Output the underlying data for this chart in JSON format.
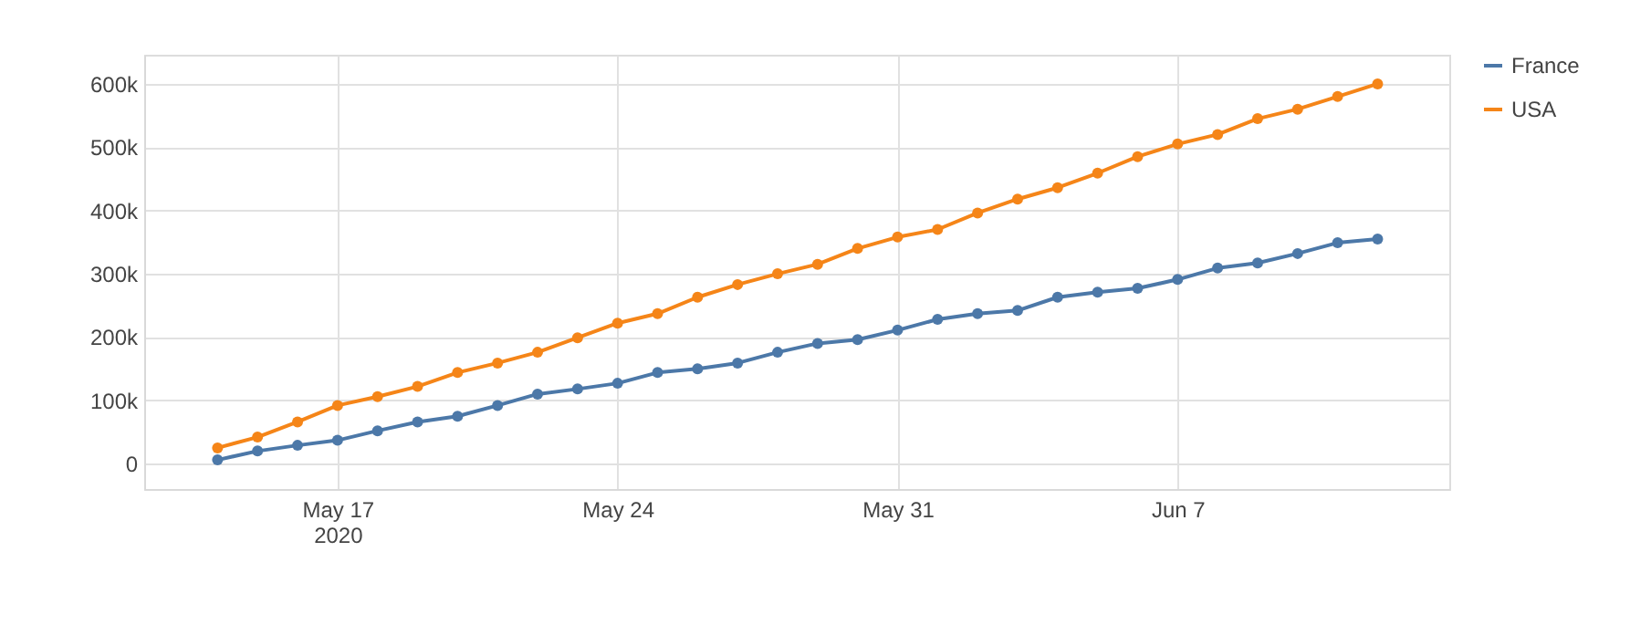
{
  "chart_data": {
    "type": "line",
    "x": [
      "2020-05-14",
      "2020-05-15",
      "2020-05-16",
      "2020-05-17",
      "2020-05-18",
      "2020-05-19",
      "2020-05-20",
      "2020-05-21",
      "2020-05-22",
      "2020-05-23",
      "2020-05-24",
      "2020-05-25",
      "2020-05-26",
      "2020-05-27",
      "2020-05-28",
      "2020-05-29",
      "2020-05-30",
      "2020-05-31",
      "2020-06-01",
      "2020-06-02",
      "2020-06-03",
      "2020-06-04",
      "2020-06-05",
      "2020-06-06",
      "2020-06-07",
      "2020-06-08",
      "2020-06-09",
      "2020-06-10",
      "2020-06-11",
      "2020-06-12"
    ],
    "series": [
      {
        "name": "France",
        "color": "#4c78a8",
        "values": [
          6000,
          20000,
          29000,
          37000,
          52000,
          66000,
          75000,
          92000,
          110000,
          118000,
          127000,
          144000,
          150000,
          159000,
          176000,
          190000,
          196000,
          211000,
          228000,
          237000,
          242000,
          263000,
          271000,
          277000,
          291000,
          309000,
          317000,
          332000,
          349000,
          355000
        ]
      },
      {
        "name": "USA",
        "color": "#f58518",
        "values": [
          25000,
          42000,
          66000,
          92000,
          106000,
          122000,
          144000,
          159000,
          176000,
          199000,
          222000,
          237000,
          263000,
          283000,
          300000,
          315000,
          340000,
          358000,
          370000,
          396000,
          418000,
          436000,
          459000,
          485000,
          505000,
          520000,
          545000,
          560000,
          580000,
          600000
        ]
      }
    ],
    "xlim": [
      "2020-05-12T04:00",
      "2020-06-13T19:00"
    ],
    "xticks": [
      {
        "value": "2020-05-17",
        "label": "May 17\n2020"
      },
      {
        "value": "2020-05-24",
        "label": "May 24"
      },
      {
        "value": "2020-05-31",
        "label": "May 31"
      },
      {
        "value": "2020-06-07",
        "label": "Jun 7"
      }
    ],
    "ylim": [
      -40000,
      646000
    ],
    "yticks": [
      {
        "value": 0,
        "label": "0"
      },
      {
        "value": 100000,
        "label": "100k"
      },
      {
        "value": 200000,
        "label": "200k"
      },
      {
        "value": 300000,
        "label": "300k"
      },
      {
        "value": 400000,
        "label": "400k"
      },
      {
        "value": 500000,
        "label": "500k"
      },
      {
        "value": 600000,
        "label": "600k"
      }
    ],
    "grid": true,
    "legend": "top right",
    "marker": "circle",
    "line_style": "solid"
  }
}
